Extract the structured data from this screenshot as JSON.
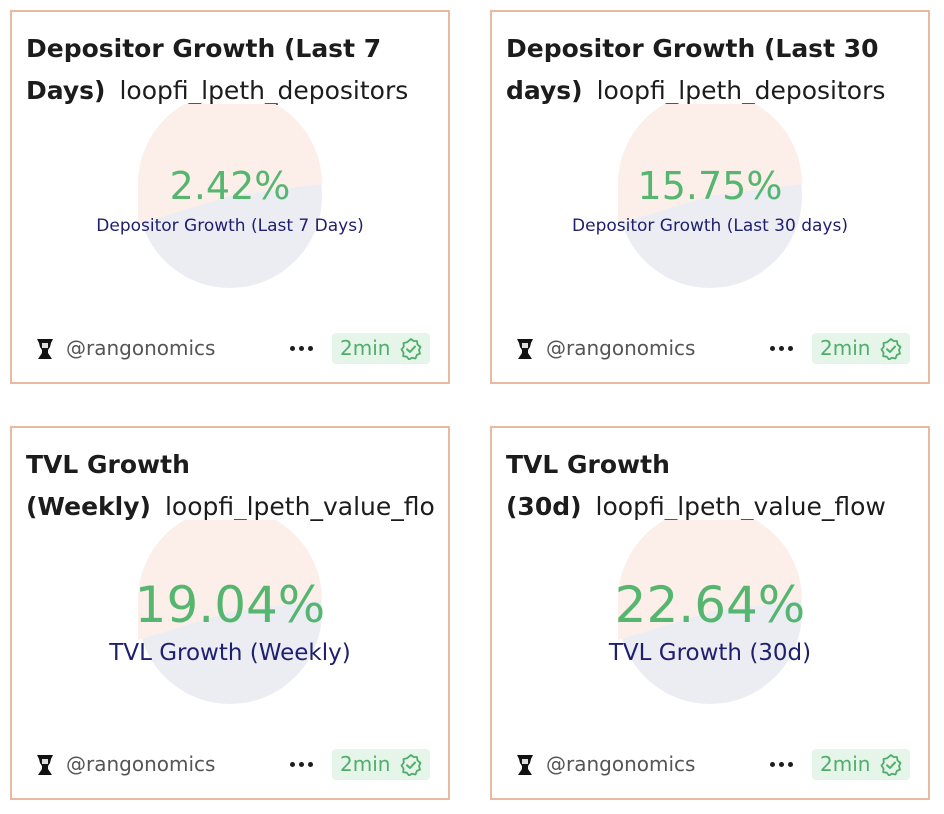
{
  "colors": {
    "card_border": "#e9b9a2",
    "value_green": "#56b670",
    "label_navy": "#1e1f6e",
    "pie_top": "#fcefea",
    "pie_bottom": "#ebedf3",
    "badge_bg": "#e6f5ea"
  },
  "cards": [
    {
      "title": "Depositor Growth (Last 7 Days)",
      "query": "loopfi_lpeth_depositors",
      "value": "2.42%",
      "label": "Depositor Growth (Last 7 Days)",
      "author": "@rangonomics",
      "refresh": "2min",
      "icons": {
        "avatar": "user-avatar-icon",
        "more": "more-dots-icon",
        "badge": "check-badge-icon"
      }
    },
    {
      "title": "Depositor Growth (Last 30 days)",
      "query": "loopfi_lpeth_depositors",
      "value": "15.75%",
      "label": "Depositor Growth (Last 30 days)",
      "author": "@rangonomics",
      "refresh": "2min",
      "icons": {
        "avatar": "user-avatar-icon",
        "more": "more-dots-icon",
        "badge": "check-badge-icon"
      }
    },
    {
      "title": "TVL Growth (Weekly)",
      "query": "loopfi_lpeth_value_flo",
      "value": "19.04%",
      "label": "TVL Growth (Weekly)",
      "author": "@rangonomics",
      "refresh": "2min",
      "icons": {
        "avatar": "user-avatar-icon",
        "more": "more-dots-icon",
        "badge": "check-badge-icon"
      }
    },
    {
      "title": "TVL Growth (30d)",
      "query": "loopfi_lpeth_value_flow",
      "value": "22.64%",
      "label": "TVL Growth (30d)",
      "author": "@rangonomics",
      "refresh": "2min",
      "icons": {
        "avatar": "user-avatar-icon",
        "more": "more-dots-icon",
        "badge": "check-badge-icon"
      }
    }
  ]
}
